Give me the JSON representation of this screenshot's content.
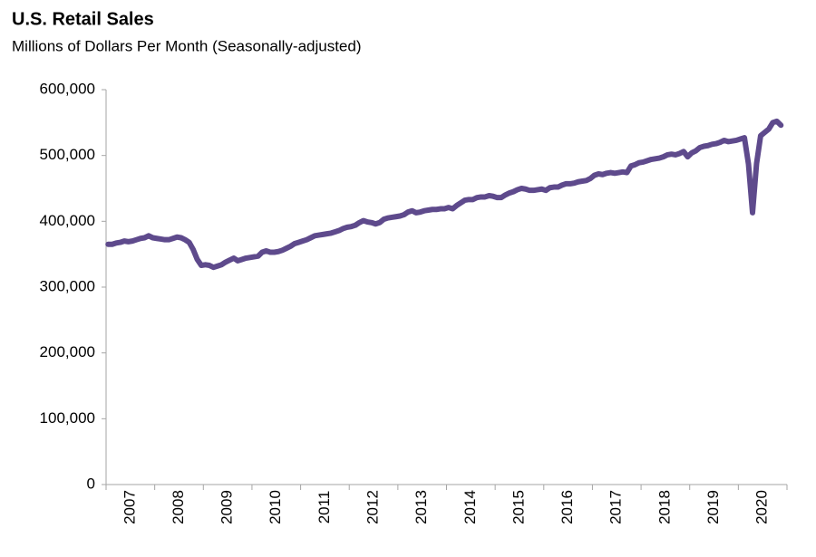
{
  "chart_data": {
    "type": "line",
    "title": "U.S. Retail Sales",
    "subtitle": "Millions of Dollars Per Month (Seasonally-adjusted)",
    "categories": [
      null,
      null,
      null,
      null,
      null,
      null,
      "2007",
      null,
      null,
      null,
      null,
      null,
      null,
      null,
      null,
      null,
      null,
      null,
      "2008",
      null,
      null,
      null,
      null,
      null,
      null,
      null,
      null,
      null,
      null,
      null,
      "2009",
      null,
      null,
      null,
      null,
      null,
      null,
      null,
      null,
      null,
      null,
      null,
      "2010",
      null,
      null,
      null,
      null,
      null,
      null,
      null,
      null,
      null,
      null,
      null,
      "2011",
      null,
      null,
      null,
      null,
      null,
      null,
      null,
      null,
      null,
      null,
      null,
      "2012",
      null,
      null,
      null,
      null,
      null,
      null,
      null,
      null,
      null,
      null,
      null,
      "2013",
      null,
      null,
      null,
      null,
      null,
      null,
      null,
      null,
      null,
      null,
      null,
      "2014",
      null,
      null,
      null,
      null,
      null,
      null,
      null,
      null,
      null,
      null,
      null,
      "2015",
      null,
      null,
      null,
      null,
      null,
      null,
      null,
      null,
      null,
      null,
      null,
      "2016",
      null,
      null,
      null,
      null,
      null,
      null,
      null,
      null,
      null,
      null,
      null,
      "2017",
      null,
      null,
      null,
      null,
      null,
      null,
      null,
      null,
      null,
      null,
      null,
      "2018",
      null,
      null,
      null,
      null,
      null,
      null,
      null,
      null,
      null,
      null,
      null,
      "2019",
      null,
      null,
      null,
      null,
      null,
      null,
      null,
      null,
      null,
      null,
      null,
      "2020",
      null,
      null,
      null,
      null
    ],
    "series": [
      {
        "color": "#5e4a8c",
        "values": [
          365000,
          365000,
          367000,
          368000,
          370000,
          369000,
          370000,
          372000,
          374000,
          375000,
          378000,
          375000,
          374000,
          373000,
          372000,
          372000,
          374000,
          376000,
          375000,
          372000,
          368000,
          357000,
          342000,
          333000,
          334000,
          333000,
          330000,
          332000,
          334000,
          338000,
          341000,
          344000,
          340000,
          342000,
          344000,
          345000,
          346000,
          347000,
          353000,
          355000,
          353000,
          353000,
          354000,
          356000,
          359000,
          362000,
          366000,
          368000,
          370000,
          372000,
          375000,
          378000,
          379000,
          380000,
          381000,
          382000,
          384000,
          386000,
          389000,
          391000,
          392000,
          394000,
          398000,
          401000,
          399000,
          398000,
          396000,
          398000,
          403000,
          405000,
          406000,
          407000,
          408000,
          410000,
          414000,
          416000,
          413000,
          414000,
          416000,
          417000,
          418000,
          418000,
          419000,
          419000,
          421000,
          419000,
          424000,
          428000,
          432000,
          433000,
          433000,
          436000,
          437000,
          437000,
          439000,
          438000,
          436000,
          436000,
          440000,
          443000,
          445000,
          448000,
          450000,
          449000,
          447000,
          447000,
          448000,
          449000,
          447000,
          451000,
          452000,
          452000,
          455000,
          457000,
          457000,
          458000,
          460000,
          461000,
          462000,
          465000,
          470000,
          472000,
          471000,
          473000,
          474000,
          473000,
          474000,
          475000,
          474000,
          484000,
          486000,
          489000,
          490000,
          492000,
          494000,
          495000,
          496000,
          498000,
          501000,
          502000,
          501000,
          503000,
          506000,
          498000,
          504000,
          507000,
          512000,
          514000,
          515000,
          517000,
          518000,
          520000,
          523000,
          521000,
          522000,
          523000,
          525000,
          527000,
          487000,
          413000,
          488000,
          530000,
          535000,
          540000,
          550000,
          552000,
          546000
        ]
      }
    ],
    "ylim": [
      0,
      600000
    ],
    "yticks": [
      0,
      {
        "value": 100000,
        "label": "100,000"
      },
      {
        "value": 200000,
        "label": "200,000"
      },
      {
        "value": 300000,
        "label": "300,000"
      },
      {
        "value": 400000,
        "label": "400,000"
      },
      {
        "value": 500000,
        "label": "500,000"
      },
      {
        "value": 600000,
        "label": "600,000"
      }
    ],
    "grid": false
  }
}
